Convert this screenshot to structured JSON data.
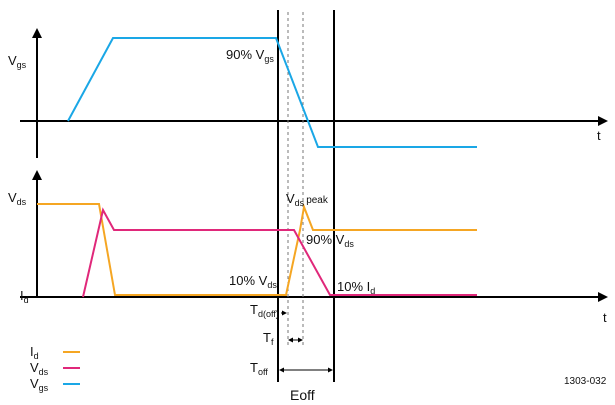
{
  "colors": {
    "vgs": "#1aa7e6",
    "vds": "#e0287a",
    "id": "#f5a623",
    "axis": "#000000",
    "guide": "#777777"
  },
  "labels": {
    "vgs_axis_main": "V",
    "vgs_axis_sub": "gs",
    "vds_axis_main": "V",
    "vds_axis_sub": "ds",
    "id_axis_main": "I",
    "id_axis_sub": "d",
    "t_top": "t",
    "t_bottom": "t",
    "vgs90_main": "90% V",
    "vgs90_sub": "gs",
    "vdspeak_main": "V",
    "vdspeak_sub": "ds",
    "vdspeak_tail": "peak",
    "vds90_main": "90% V",
    "vds90_sub": "ds",
    "vds10_main": "10% V",
    "vds10_sub": "ds",
    "id10_main": "10% I",
    "id10_sub": "d",
    "td_main": "T",
    "td_sub": "d(off)",
    "tf_main": "T",
    "tf_sub": "f",
    "toff_main": "T",
    "toff_sub": "off",
    "eoff": "Eoff",
    "figure_id": "1303-032"
  },
  "legend": [
    {
      "main": "I",
      "sub": "d",
      "color": "#f5a623"
    },
    {
      "main": "V",
      "sub": "ds",
      "color": "#e0287a"
    },
    {
      "main": "V",
      "sub": "gs",
      "color": "#1aa7e6"
    }
  ]
}
